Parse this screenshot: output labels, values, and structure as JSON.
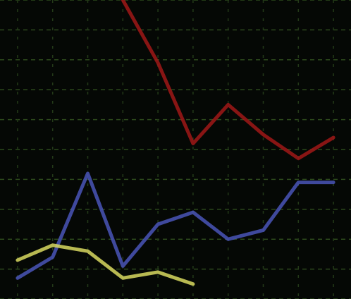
{
  "chart_data": {
    "type": "line",
    "x": [
      0,
      1,
      2,
      3,
      4,
      5,
      6,
      7,
      8,
      9
    ],
    "xlim": [
      -0.5,
      9.5
    ],
    "xticks": [
      0,
      1,
      2,
      3,
      4,
      5,
      6,
      7,
      8,
      9
    ],
    "ylim": [
      0,
      10
    ],
    "yticks": [
      0,
      1,
      2,
      3,
      4,
      5,
      6,
      7,
      8,
      9,
      10
    ],
    "grid": true,
    "series": [
      {
        "color": "#a01818",
        "values": [
          null,
          null,
          null,
          10,
          7.9,
          5.2,
          6.5,
          5.5,
          4.7,
          5.4
        ]
      },
      {
        "color": "#4a55b8",
        "values": [
          0.7,
          1.4,
          4.2,
          1.1,
          2.5,
          2.9,
          2.0,
          2.3,
          3.9,
          3.9
        ]
      },
      {
        "color": "#d8d860",
        "values": [
          1.3,
          1.8,
          1.6,
          0.7,
          0.9,
          0.5,
          null,
          null,
          null,
          null
        ]
      }
    ]
  }
}
